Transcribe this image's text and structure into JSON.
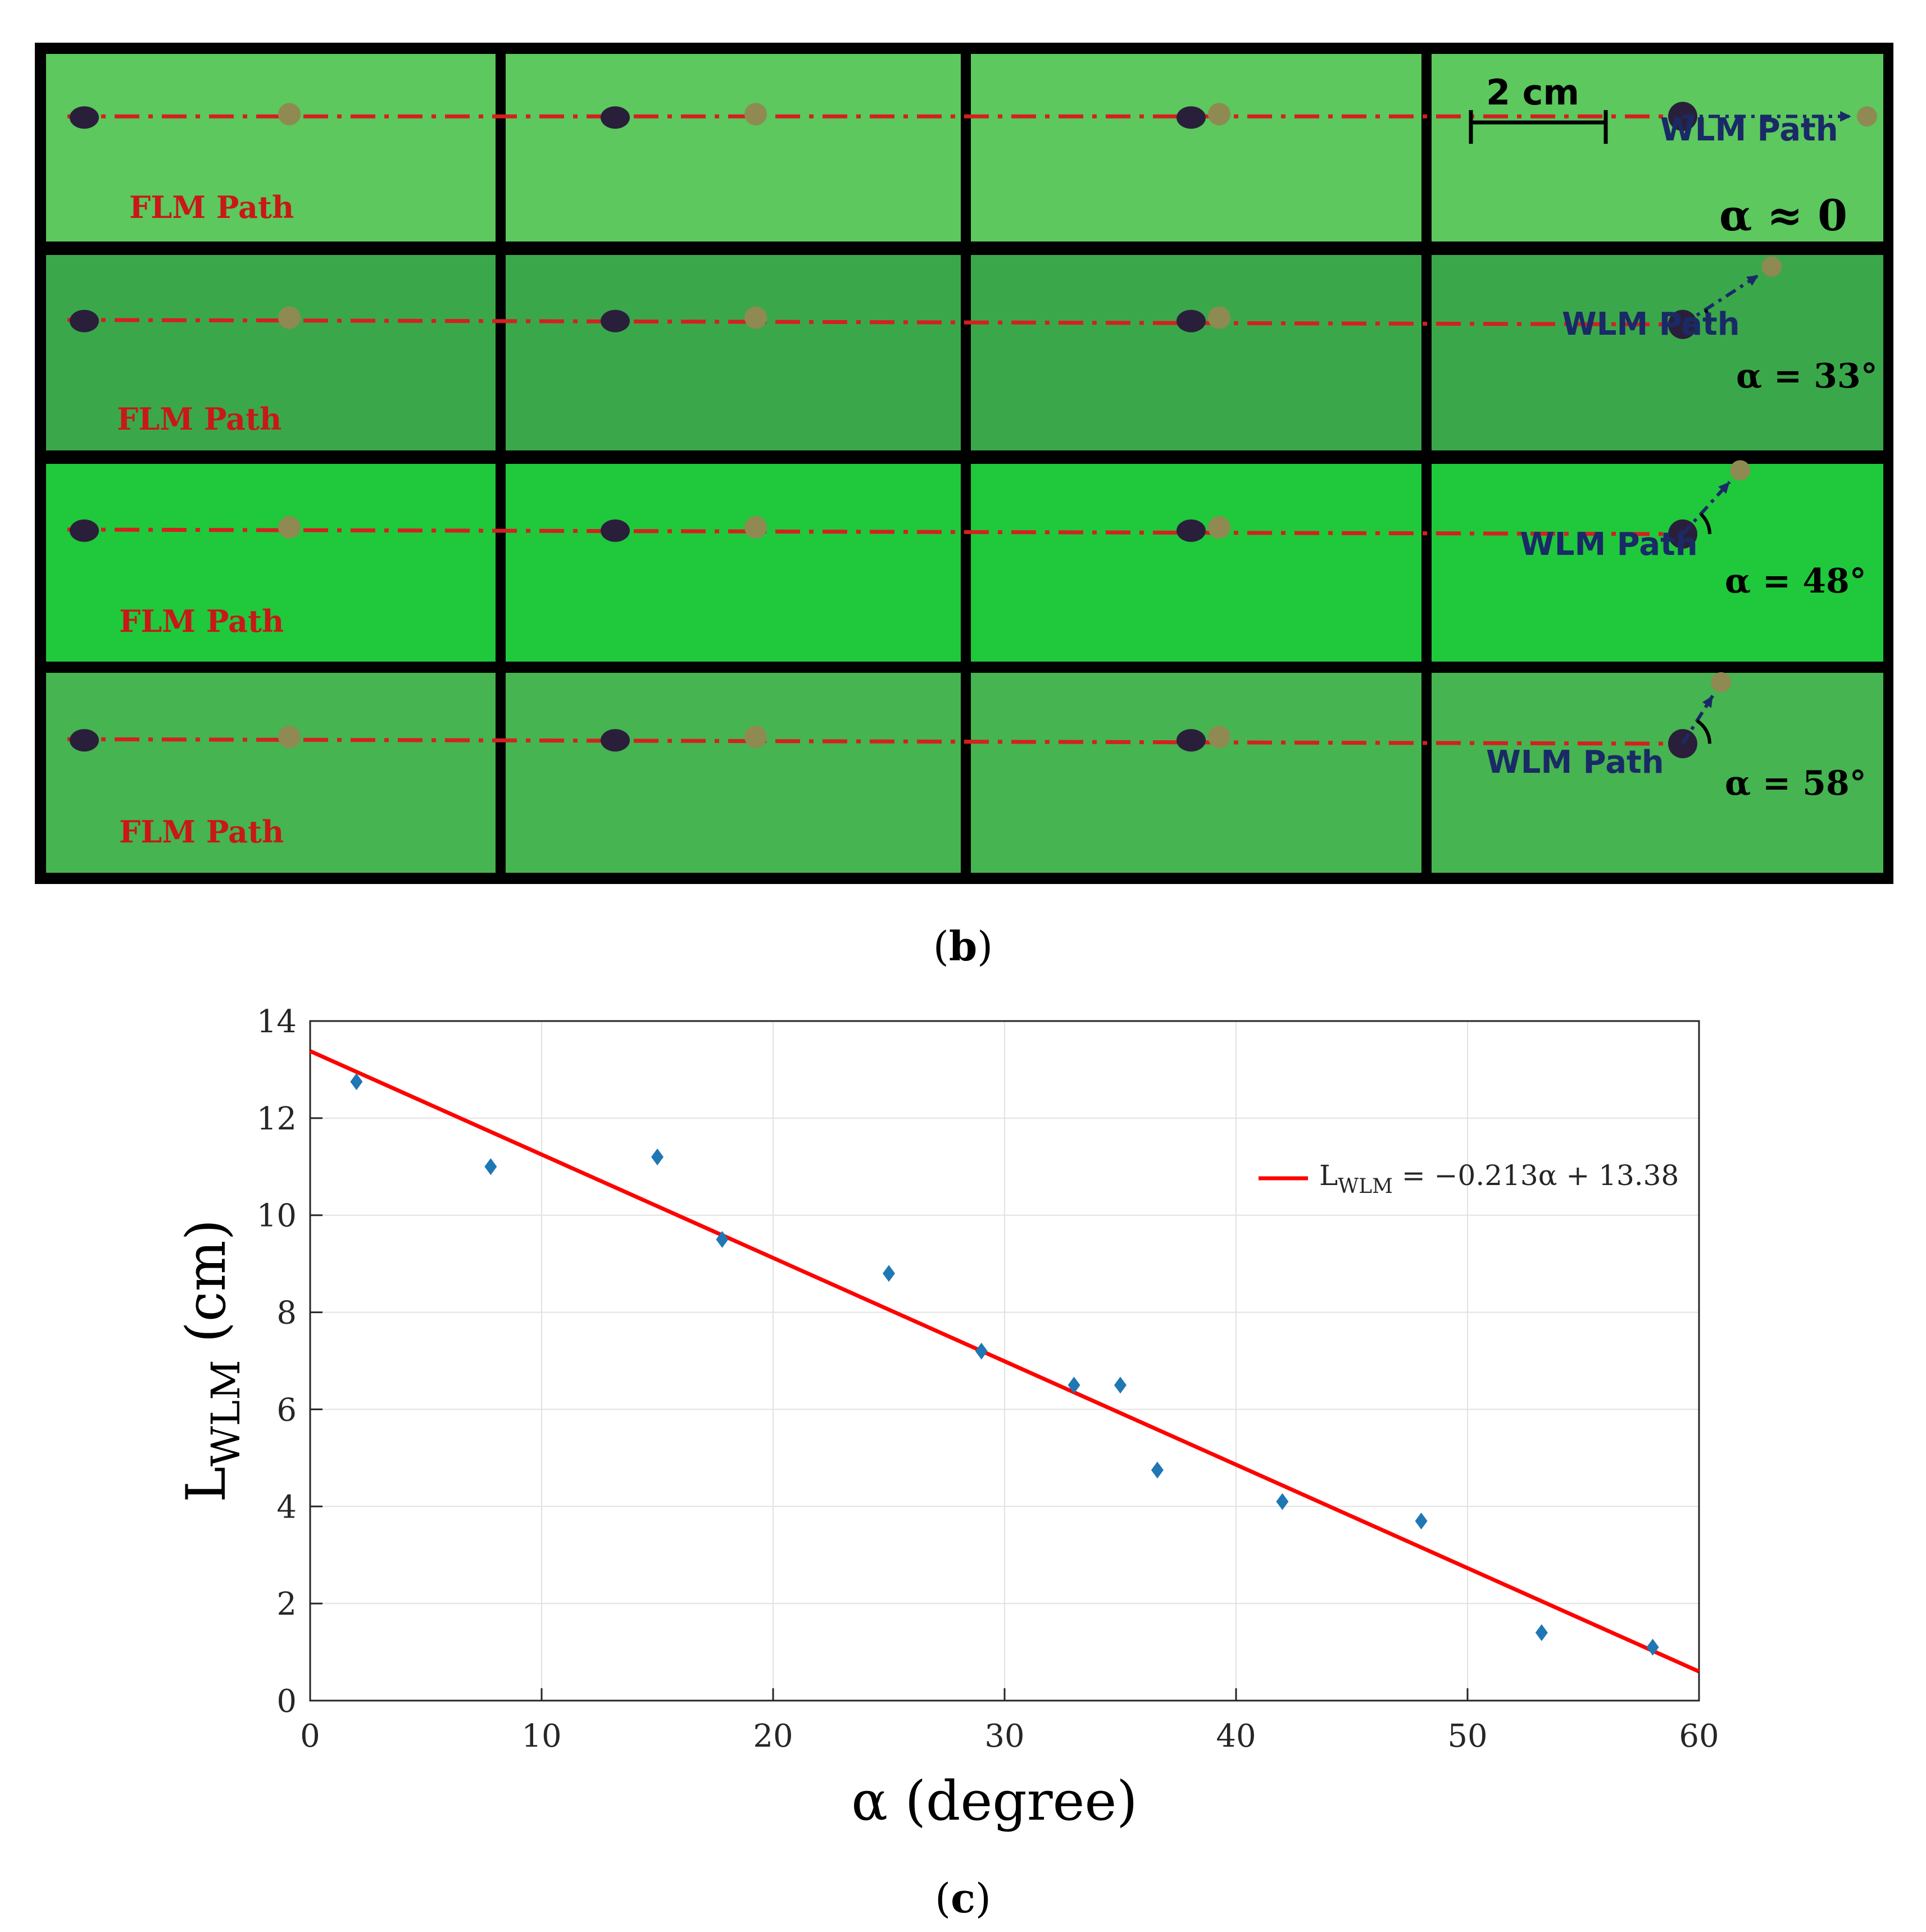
{
  "panel_b": {
    "caption_open": "(",
    "caption_letter": "b",
    "caption_close": ")",
    "scale_bar_label": "2 cm",
    "flm_label": "FLM Path",
    "wlm_label": "WLM Path",
    "rows": [
      {
        "alpha_label": "α ≈ 0",
        "background": "#5cc85e",
        "wlm_angle_deg": 0
      },
      {
        "alpha_label": "α = 33°",
        "background": "#3aa84a",
        "wlm_angle_deg": 33
      },
      {
        "alpha_label": "α = 48°",
        "background": "#20c83c",
        "wlm_angle_deg": 48
      },
      {
        "alpha_label": "α = 58°",
        "background": "#46b450",
        "wlm_angle_deg": 58
      }
    ],
    "colors": {
      "frame": "#000000",
      "flm_path": "#d42020",
      "flm_text": "#c81818",
      "wlm_path": "#1a2a66",
      "wlm_text": "#1a2a66",
      "droplet": "#2a1f3a",
      "marble": "#8f8a52"
    }
  },
  "panel_c": {
    "caption_open": "(",
    "caption_letter": "c",
    "caption_close": ")"
  },
  "chart_data": {
    "type": "scatter",
    "title": "",
    "xlabel": "α (degree)",
    "ylabel_main": "L",
    "ylabel_sub": "WLM",
    "ylabel_rest": " (cm)",
    "xlim": [
      0,
      60
    ],
    "ylim": [
      0,
      14
    ],
    "xticks": [
      0,
      10,
      20,
      30,
      40,
      50,
      60
    ],
    "yticks": [
      0,
      2,
      4,
      6,
      8,
      10,
      12,
      14
    ],
    "grid": true,
    "legend_position": "top-right",
    "series": [
      {
        "name": "measurements",
        "kind": "marker",
        "marker": "diamond",
        "color": "#1f77b4",
        "x": [
          2,
          7.8,
          15,
          17.8,
          25,
          29,
          33,
          35,
          36.6,
          42,
          48,
          53.2,
          58
        ],
        "y": [
          12.75,
          11,
          11.2,
          9.5,
          8.8,
          7.2,
          6.5,
          6.5,
          4.75,
          4.1,
          3.7,
          1.4,
          1.1
        ]
      },
      {
        "name": "fit",
        "kind": "line",
        "color": "#ff0000",
        "slope": -0.213,
        "intercept": 13.38,
        "legend_main": "L",
        "legend_sub": "WLM",
        "legend_rest": " = −0.213α + 13.38"
      }
    ]
  }
}
